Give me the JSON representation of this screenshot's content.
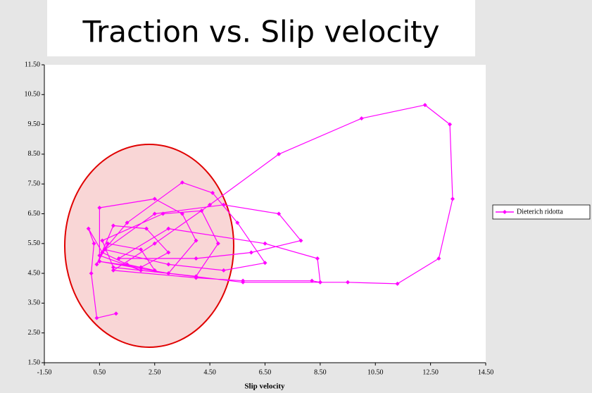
{
  "chart_data": {
    "type": "line",
    "title": "Traction vs. Slip velocity",
    "x_label": "Slip velocity",
    "x": [
      1.1,
      0.4,
      0.2,
      0.3,
      0.1,
      0.6,
      1.5,
      2.5,
      2.0,
      0.8,
      0.4,
      1.0,
      2.2,
      3.0,
      2.0,
      0.5,
      0.5,
      2.5,
      3.5,
      4.0,
      3.0,
      1.0,
      0.6,
      2.8,
      4.2,
      4.8,
      4.0,
      2.0,
      0.5,
      1.5,
      3.5,
      4.6,
      5.5,
      6.5,
      5.0,
      3.0,
      0.7,
      2.5,
      5.0,
      7.0,
      7.8,
      6.0,
      4.0,
      1.2,
      3.0,
      6.5,
      8.4,
      8.5,
      8.2,
      5.7,
      4.0,
      1.0,
      2.5,
      4.5,
      7.0,
      10.0,
      12.3,
      13.2,
      13.3,
      12.8,
      11.3,
      9.5,
      8.5,
      5.7,
      3.0,
      0.5
    ],
    "series": [
      {
        "name": "Dieterich ridotta",
        "color": "#ff00ff",
        "values": [
          3.15,
          3.0,
          4.5,
          5.5,
          6.0,
          5.2,
          4.8,
          4.6,
          5.3,
          5.5,
          4.8,
          6.1,
          6.0,
          5.2,
          4.7,
          4.9,
          6.7,
          7.0,
          6.5,
          5.6,
          4.5,
          4.7,
          5.6,
          6.5,
          6.6,
          5.5,
          4.4,
          4.6,
          5.1,
          6.2,
          7.55,
          7.2,
          6.2,
          4.85,
          4.6,
          4.8,
          5.3,
          6.5,
          6.8,
          6.5,
          5.6,
          5.2,
          5.0,
          5.0,
          6.0,
          5.5,
          5.0,
          4.2,
          4.25,
          4.25,
          4.35,
          4.6,
          5.5,
          6.8,
          8.5,
          9.7,
          10.15,
          9.5,
          7.0,
          5.0,
          4.15,
          4.2,
          4.2,
          4.2,
          4.5,
          4.9
        ]
      }
    ],
    "xlim": [
      -1.5,
      14.5
    ],
    "xticks": [
      {
        "value": -1.5,
        "label": "-1.50"
      },
      {
        "value": 0.5,
        "label": "0.50"
      },
      {
        "value": 2.5,
        "label": "2.50"
      },
      {
        "value": 4.5,
        "label": "4.50"
      },
      {
        "value": 6.5,
        "label": "6.50"
      },
      {
        "value": 8.5,
        "label": "8.50"
      },
      {
        "value": 10.5,
        "label": "10.50"
      },
      {
        "value": 12.5,
        "label": "12.50"
      },
      {
        "value": 14.5,
        "label": "14.50"
      }
    ],
    "ylim": [
      1.5,
      11.5
    ],
    "yticks": [
      {
        "value": 1.5,
        "label": "1.50"
      },
      {
        "value": 2.5,
        "label": "2.50"
      },
      {
        "value": 3.5,
        "label": "3.50"
      },
      {
        "value": 4.5,
        "label": "4.50"
      },
      {
        "value": 5.5,
        "label": "5.50"
      },
      {
        "value": 6.5,
        "label": "6.50"
      },
      {
        "value": 7.5,
        "label": "7.50"
      },
      {
        "value": 8.5,
        "label": "8.50"
      },
      {
        "value": 9.5,
        "label": "9.50"
      },
      {
        "value": 10.5,
        "label": "10.50"
      },
      {
        "value": 11.5,
        "label": "11.50"
      }
    ],
    "grid": false,
    "legend": "right"
  }
}
